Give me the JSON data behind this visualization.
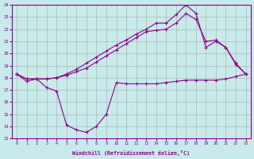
{
  "xlabel": "Windchill (Refroidissement éolien,°C)",
  "bg_color": "#c8eaea",
  "grid_color": "#aaaaaa",
  "line_color": "#8b008b",
  "xlim_min": -0.5,
  "xlim_max": 23.5,
  "ylim_min": 13,
  "ylim_max": 24,
  "yticks": [
    13,
    14,
    15,
    16,
    17,
    18,
    19,
    20,
    21,
    22,
    23,
    24
  ],
  "xticks": [
    0,
    1,
    2,
    3,
    4,
    5,
    6,
    7,
    8,
    9,
    10,
    11,
    12,
    13,
    14,
    15,
    16,
    17,
    18,
    19,
    20,
    21,
    22,
    23
  ],
  "hours": [
    0,
    1,
    2,
    3,
    4,
    5,
    6,
    7,
    8,
    9,
    10,
    11,
    12,
    13,
    14,
    15,
    16,
    17,
    18,
    19,
    20,
    21,
    22,
    23
  ],
  "line1": [
    18.3,
    17.7,
    17.9,
    17.2,
    16.9,
    14.1,
    13.7,
    13.5,
    14.0,
    15.0,
    17.6,
    17.5,
    17.5,
    17.5,
    17.5,
    17.6,
    17.7,
    17.8,
    17.8,
    17.8,
    17.8,
    17.9,
    18.1,
    18.3
  ],
  "line2": [
    18.3,
    17.9,
    17.9,
    17.9,
    18.0,
    18.3,
    18.7,
    19.2,
    19.7,
    20.2,
    20.7,
    21.1,
    21.6,
    22.0,
    22.5,
    22.5,
    23.2,
    24.0,
    23.3,
    20.5,
    21.0,
    20.5,
    19.2,
    18.3
  ],
  "line3": [
    18.3,
    17.9,
    17.9,
    17.9,
    18.0,
    18.2,
    18.5,
    18.8,
    19.3,
    19.8,
    20.3,
    20.8,
    21.3,
    21.8,
    21.9,
    22.0,
    22.5,
    23.3,
    22.8,
    21.0,
    21.1,
    20.5,
    19.1,
    18.3
  ]
}
